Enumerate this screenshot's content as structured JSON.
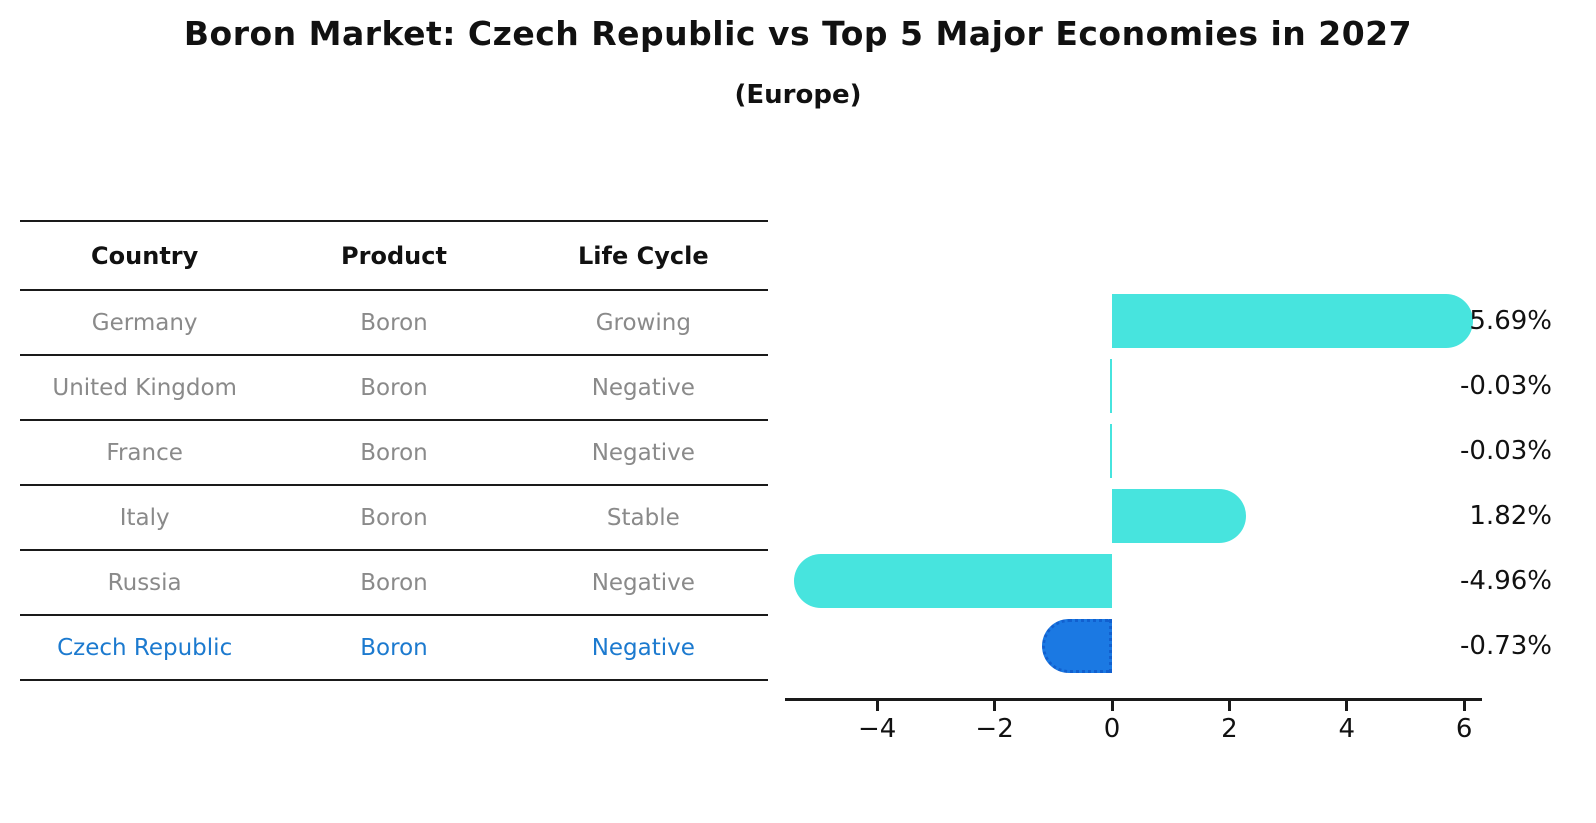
{
  "title": "Boron Market: Czech Republic vs Top 5 Major Economies in 2027",
  "subtitle": "(Europe)",
  "table": {
    "headers": [
      "Country",
      "Product",
      "Life Cycle"
    ],
    "rows": [
      {
        "country": "Germany",
        "product": "Boron",
        "life_cycle": "Growing",
        "highlight": false
      },
      {
        "country": "United Kingdom",
        "product": "Boron",
        "life_cycle": "Negative",
        "highlight": false
      },
      {
        "country": "France",
        "product": "Boron",
        "life_cycle": "Negative",
        "highlight": false
      },
      {
        "country": "Italy",
        "product": "Boron",
        "life_cycle": "Stable",
        "highlight": false
      },
      {
        "country": "Russia",
        "product": "Boron",
        "life_cycle": "Negative",
        "highlight": false
      },
      {
        "country": "Czech Republic",
        "product": "Boron",
        "life_cycle": "Negative",
        "highlight": true
      }
    ]
  },
  "chart_data": {
    "type": "bar",
    "orientation": "horizontal",
    "title": "Boron Market: Czech Republic vs Top 5 Major Economies in 2027 (Europe)",
    "categories": [
      "Germany",
      "United Kingdom",
      "France",
      "Italy",
      "Russia",
      "Czech Republic"
    ],
    "values": [
      5.69,
      -0.03,
      -0.03,
      1.82,
      -4.96,
      -0.73
    ],
    "value_labels": [
      "5.69%",
      "-0.03%",
      "-0.03%",
      "1.82%",
      "-4.96%",
      "-0.73%"
    ],
    "unit": "%",
    "x_ticks": [
      -4,
      -2,
      0,
      2,
      4,
      6
    ],
    "x_tick_labels": [
      "−4",
      "−2",
      "0",
      "2",
      "4",
      "6"
    ],
    "xlim": [
      -5.6,
      6.3
    ],
    "grid": false,
    "legend": false,
    "highlight_index": 5,
    "colors": {
      "bar": "#47e4de",
      "highlight_bar": "#1b79e3",
      "highlight_border": "#1160cf",
      "highlight_text": "#1c7acf",
      "row_text": "#8a8a8a",
      "axis": "#1a1a1a",
      "label_text": "#111111"
    }
  }
}
